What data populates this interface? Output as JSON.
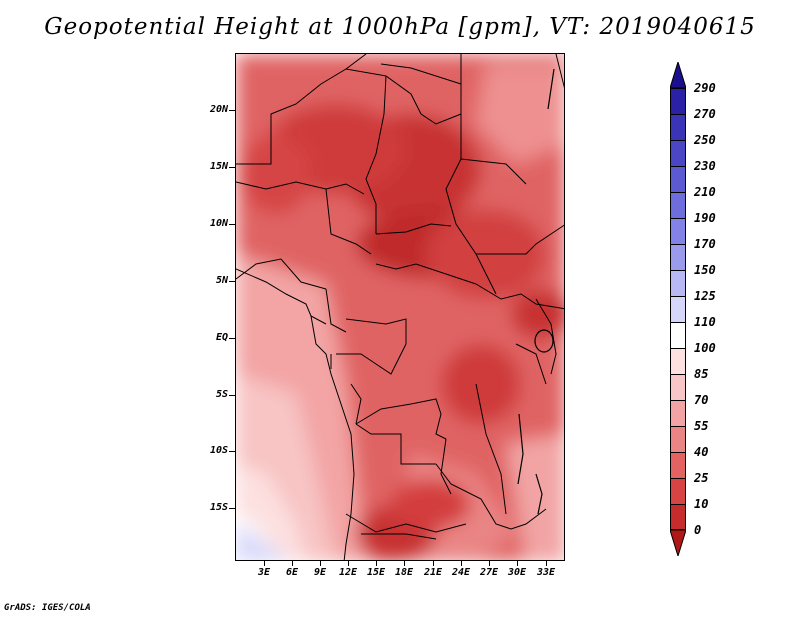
{
  "title": "Geopotential Height at 1000hPa [gpm], VT: 2019040615",
  "credit": "GrADS: IGES/COLA",
  "map": {
    "lat_labels": [
      "20N",
      "15N",
      "10N",
      "5N",
      "EQ",
      "5S",
      "10S",
      "15S"
    ],
    "lon_labels": [
      "3E",
      "6E",
      "9E",
      "12E",
      "15E",
      "18E",
      "21E",
      "24E",
      "27E",
      "30E",
      "33E"
    ],
    "lon_range_deg": [
      0,
      35
    ],
    "lat_range_deg": [
      -20,
      25
    ]
  },
  "colorbar": {
    "labels": [
      "290",
      "270",
      "250",
      "230",
      "210",
      "190",
      "170",
      "150",
      "125",
      "110",
      "100",
      "85",
      "70",
      "55",
      "40",
      "25",
      "10",
      "0"
    ],
    "colors": [
      "#1a0f8c",
      "#2a21a6",
      "#3a34b6",
      "#4b46c4",
      "#5c5ad1",
      "#6e6ddc",
      "#8382e6",
      "#9b9bee",
      "#b8b8f5",
      "#d6d6fb",
      "#ffffff",
      "#fde1e1",
      "#f8c6c6",
      "#f2a4a4",
      "#ea8585",
      "#e36262",
      "#d84343",
      "#c72c2c",
      "#b01818"
    ]
  }
}
